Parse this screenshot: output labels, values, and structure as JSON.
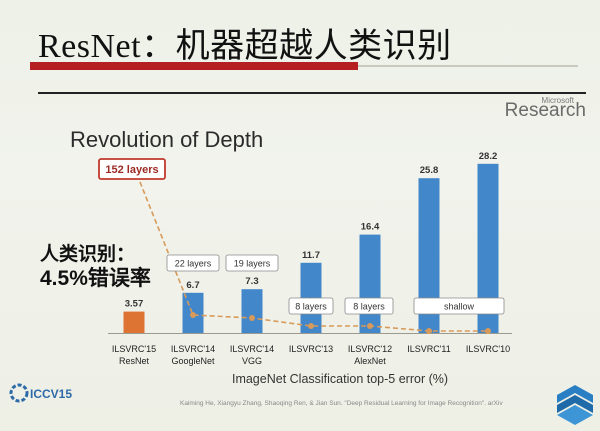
{
  "slide": {
    "title": "ResNet：机器超越人类识别",
    "brand_small": "Microsoft",
    "brand": "Research",
    "annotation_line1": "人类识别：",
    "annotation_line2": "4.5%错误率",
    "citation": "Kaiming He, Xiangyu Zhang, Shaoqing Ren, & Jian Sun. \"Deep Residual Learning for Image Recognition\". arXiv",
    "logo_text": "ICCV15",
    "colors": {
      "title_rule": "#b51f22",
      "bar_blue": "#4287c9",
      "bar_orange": "#dd7433",
      "trend_line": "#d79a5a",
      "highlight_border": "#c0392b"
    }
  },
  "chart_data": {
    "type": "bar",
    "title": "Revolution of Depth",
    "xlabel": "ImageNet Classification top-5 error (%)",
    "categories": [
      "ILSVRC'15\nResNet",
      "ILSVRC'14\nGoogleNet",
      "ILSVRC'14\nVGG",
      "ILSVRC'13",
      "ILSVRC'12\nAlexNet",
      "ILSVRC'11",
      "ILSVRC'10"
    ],
    "values": [
      3.57,
      6.7,
      7.3,
      11.7,
      16.4,
      25.8,
      28.2
    ],
    "value_labels": [
      "3.57",
      "6.7",
      "7.3",
      "11.7",
      "16.4",
      "25.8",
      "28.2"
    ],
    "bar_colors": [
      "#dd7433",
      "#4287c9",
      "#4287c9",
      "#4287c9",
      "#4287c9",
      "#4287c9",
      "#4287c9"
    ],
    "depth_labels": [
      "152 layers",
      "22 layers",
      "19 layers",
      "8 layers",
      "8 layers",
      "shallow"
    ],
    "depth_trend": [
      152,
      22,
      19,
      8,
      8,
      0,
      0
    ],
    "ylim": [
      0,
      30
    ],
    "grid": false
  }
}
